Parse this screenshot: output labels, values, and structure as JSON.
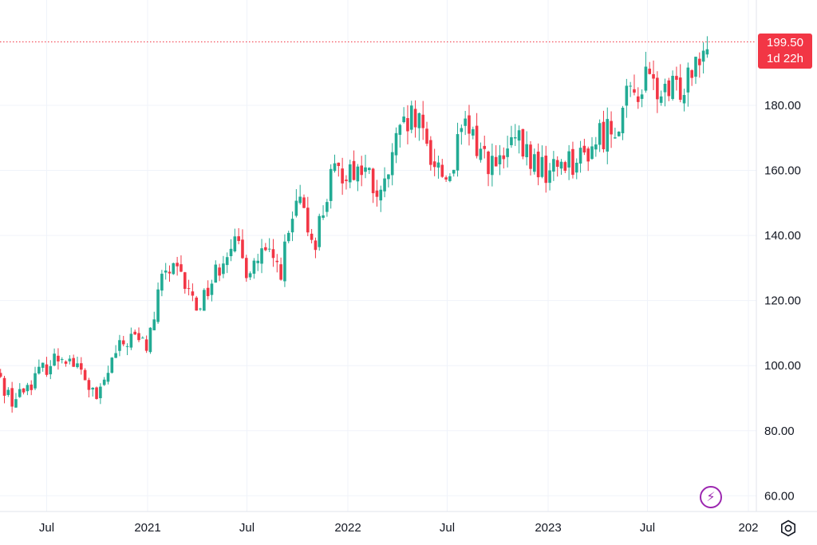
{
  "chart_data": {
    "type": "candlestick",
    "y_ticks": [
      "180.00",
      "160.00",
      "140.00",
      "120.00",
      "100.00",
      "80.00",
      "60.00"
    ],
    "x_ticks": [
      "Jul",
      "2021",
      "Jul",
      "2022",
      "Jul",
      "2023",
      "Jul",
      "202"
    ],
    "ylim": [
      57,
      205
    ],
    "grid": true,
    "last_price": "199.50",
    "countdown": "1d 22h",
    "colors": {
      "up": "#22ab94",
      "down": "#f23645",
      "grid": "#f0f3fa",
      "text": "#131722",
      "accent": "#9c27b0"
    },
    "anchors": [
      [
        "2020-04-01",
        97
      ],
      [
        "2020-05-01",
        89
      ],
      [
        "2020-06-01",
        95
      ],
      [
        "2020-07-01",
        100
      ],
      [
        "2020-08-01",
        104
      ],
      [
        "2020-09-01",
        98
      ],
      [
        "2020-10-01",
        89
      ],
      [
        "2020-11-01",
        103
      ],
      [
        "2020-12-01",
        109
      ],
      [
        "2021-01-01",
        106
      ],
      [
        "2021-02-01",
        130
      ],
      [
        "2021-03-01",
        127
      ],
      [
        "2021-04-01",
        118
      ],
      [
        "2021-05-01",
        127
      ],
      [
        "2021-06-01",
        139
      ],
      [
        "2021-07-01",
        130
      ],
      [
        "2021-08-01",
        134
      ],
      [
        "2021-09-01",
        130
      ],
      [
        "2021-10-01",
        150
      ],
      [
        "2021-11-01",
        138
      ],
      [
        "2021-12-01",
        157
      ],
      [
        "2022-01-01",
        161
      ],
      [
        "2022-02-01",
        160
      ],
      [
        "2022-03-01",
        150
      ],
      [
        "2022-04-01",
        169
      ],
      [
        "2022-05-01",
        176
      ],
      [
        "2022-06-01",
        165
      ],
      [
        "2022-07-01",
        157
      ],
      [
        "2022-08-01",
        173
      ],
      [
        "2022-09-01",
        166
      ],
      [
        "2022-10-01",
        160
      ],
      [
        "2022-11-01",
        169
      ],
      [
        "2022-12-01",
        163
      ],
      [
        "2023-01-01",
        159
      ],
      [
        "2023-02-01",
        164
      ],
      [
        "2023-03-01",
        163
      ],
      [
        "2023-04-01",
        170
      ],
      [
        "2023-05-01",
        174
      ],
      [
        "2023-06-01",
        183
      ],
      [
        "2023-07-01",
        188
      ],
      [
        "2023-08-01",
        182
      ],
      [
        "2023-09-01",
        186
      ],
      [
        "2023-10-01",
        198
      ],
      [
        "2023-10-20",
        199.5
      ]
    ]
  },
  "icons": {
    "flash": "lightning-icon",
    "settings": "gear-icon"
  }
}
